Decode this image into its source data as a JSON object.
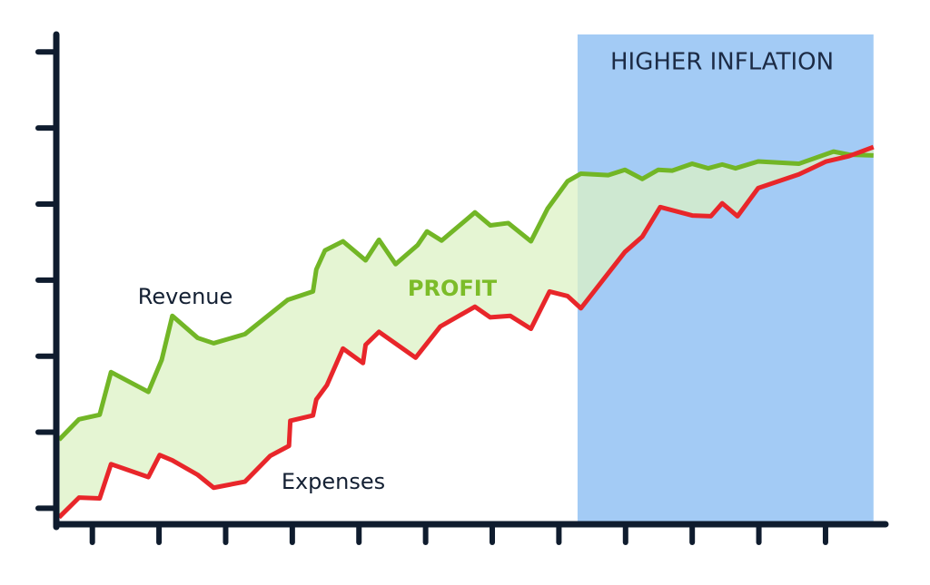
{
  "chart_data": {
    "type": "line",
    "xlim": [
      0,
      12.4
    ],
    "ylim": [
      -0.21,
      6.23
    ],
    "xticks": [
      0.5,
      1.5,
      2.5,
      3.5,
      4.5,
      5.5,
      6.5,
      7.5,
      8.5,
      9.5,
      10.5,
      11.5
    ],
    "yticks": [
      0,
      1,
      2,
      3,
      4,
      5,
      6
    ],
    "highlight": {
      "label": "HIGHER INFLATION",
      "x": [
        7.78,
        12.22
      ],
      "color": "#a3cbf5"
    },
    "fill_label": "PROFIT",
    "fill_color": "#dcf1c4",
    "fill_label_color": "#7cbc29",
    "series": [
      {
        "name": "Revenue",
        "color": "#72b626",
        "x": [
          0,
          0.3,
          0.61,
          0.78,
          1.34,
          1.54,
          1.7,
          2.08,
          2.32,
          2.79,
          3.43,
          3.81,
          3.86,
          3.99,
          4.26,
          4.6,
          4.8,
          5.05,
          5.38,
          5.52,
          5.74,
          6.24,
          6.47,
          6.74,
          7.08,
          7.33,
          7.63,
          7.83,
          8.24,
          8.49,
          8.75,
          8.99,
          9.2,
          9.5,
          9.74,
          9.95,
          10.15,
          10.49,
          11.1,
          11.62,
          11.85,
          12.22
        ],
        "values": [
          0.9,
          1.17,
          1.23,
          1.79,
          1.53,
          1.95,
          2.53,
          2.24,
          2.17,
          2.29,
          2.74,
          2.85,
          3.14,
          3.39,
          3.51,
          3.26,
          3.53,
          3.21,
          3.46,
          3.64,
          3.52,
          3.89,
          3.72,
          3.75,
          3.51,
          3.94,
          4.3,
          4.4,
          4.38,
          4.45,
          4.33,
          4.45,
          4.44,
          4.53,
          4.47,
          4.52,
          4.47,
          4.56,
          4.53,
          4.69,
          4.65,
          4.64
        ]
      },
      {
        "name": "Expenses",
        "color": "#e8262a",
        "x": [
          0,
          0.3,
          0.61,
          0.78,
          1.34,
          1.51,
          1.7,
          2.08,
          2.32,
          2.79,
          3.17,
          3.45,
          3.47,
          3.81,
          3.86,
          4.02,
          4.26,
          4.56,
          4.6,
          4.8,
          5.35,
          5.72,
          6.24,
          6.47,
          6.77,
          7.08,
          7.36,
          7.63,
          7.83,
          8.49,
          8.75,
          9.02,
          9.5,
          9.78,
          9.95,
          10.18,
          10.49,
          11.1,
          11.51,
          11.85,
          12.22
        ],
        "values": [
          -0.12,
          0.14,
          0.13,
          0.58,
          0.41,
          0.7,
          0.63,
          0.44,
          0.27,
          0.35,
          0.69,
          0.82,
          1.15,
          1.22,
          1.43,
          1.62,
          2.1,
          1.91,
          2.15,
          2.32,
          1.98,
          2.39,
          2.65,
          2.51,
          2.53,
          2.36,
          2.85,
          2.79,
          2.63,
          3.37,
          3.57,
          3.96,
          3.85,
          3.84,
          4.01,
          3.84,
          4.21,
          4.39,
          4.56,
          4.63,
          4.75
        ]
      }
    ]
  }
}
